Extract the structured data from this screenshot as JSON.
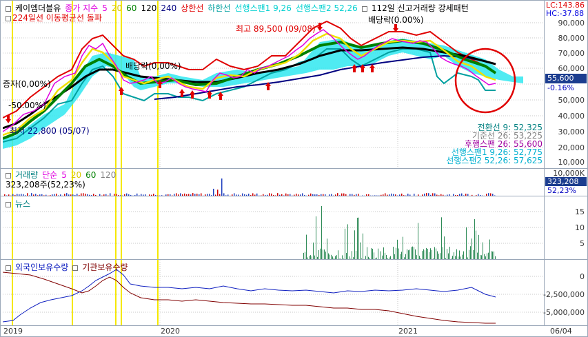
{
  "main": {
    "header": {
      "stock": "케이엠더블유",
      "ma_label": "종가 지수",
      "ma_periods": [
        "5",
        "20",
        "60",
        "120",
        "240"
      ],
      "upper": "상한선",
      "lower": "하한선",
      "span1": "선행스팬1 9,26",
      "span2": "선행스팬2 52,26",
      "signal": "112일 신고거래량 강세패턴",
      "line2": "224일선 이동평균선 돌파"
    },
    "right_top": {
      "lc": "LC:143.86",
      "hc": "HC:-37.88"
    },
    "annotations": {
      "high": "최고 89,500 (09/08)",
      "div1": "배당락(0,00%)",
      "div2": "배당락(0.00%)",
      "inc": "증자(0,00%)",
      "m50": "-50.00%)",
      "low": "최저 22,800 (05/07)"
    },
    "price_box": "55,600",
    "pct_box": "-0.16%",
    "ichimoku": [
      "전환선 9: 52,325",
      "기준선 26: 53,225",
      "후행스팬 26: 55,600",
      "선행스팬1 9,26: 52,775",
      "선행스팬2 52,26: 57,625"
    ],
    "y_ticks": [
      "90,000",
      "80,000",
      "70,000",
      "60,000",
      "50,000",
      "40,000",
      "30,000",
      "20,000",
      "10,000"
    ]
  },
  "volume": {
    "title": "거래량",
    "ma_label": "단순",
    "ma_periods": [
      "5",
      "20",
      "60",
      "120"
    ],
    "last": "323,208주(52,23%)",
    "y_tick": "10,000K",
    "box1": "323,208",
    "box2": "52,23%"
  },
  "news": {
    "title": "뉴스",
    "y_ticks": [
      "15",
      "10",
      "5"
    ]
  },
  "holdings": {
    "foreign": "외국인보유수량",
    "institution": "기관보유수량",
    "y_ticks": [
      "0",
      "-2,500,000",
      "-5,000,000"
    ]
  },
  "x_axis": [
    "2019",
    "2020",
    "2021",
    "06/04"
  ],
  "colors": {
    "ma5": "#e000e0",
    "ma20": "#f0e000",
    "ma60": "#008000",
    "ma120": "#000000",
    "ma240": "#000080",
    "upper": "#e00000",
    "lower": "#00a0a0",
    "span": "#00ffff",
    "price_box": "#1c3d8f",
    "pct_box": "#ffffff"
  }
}
